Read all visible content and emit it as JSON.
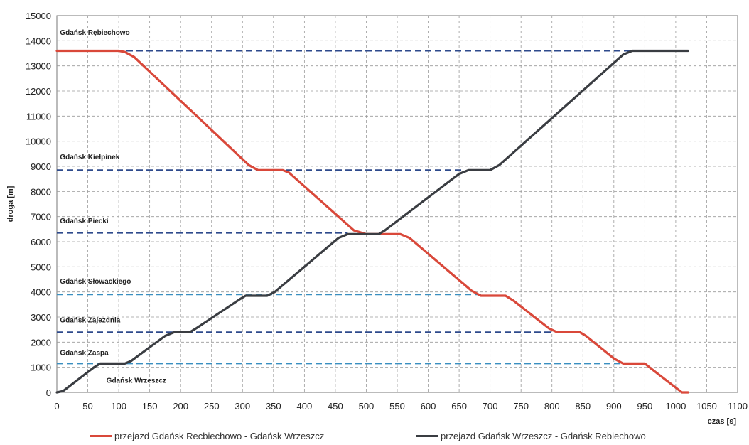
{
  "chart_data": {
    "type": "line",
    "xlabel": "czas [s]",
    "ylabel": "droga [m]",
    "xlim": [
      0,
      1100
    ],
    "ylim": [
      0,
      15000
    ],
    "x_ticks": [
      0,
      50,
      100,
      150,
      200,
      250,
      300,
      350,
      400,
      450,
      500,
      550,
      600,
      650,
      700,
      750,
      800,
      850,
      900,
      950,
      1000,
      1050,
      1100
    ],
    "y_ticks": [
      0,
      1000,
      2000,
      3000,
      4000,
      5000,
      6000,
      7000,
      8000,
      9000,
      10000,
      11000,
      12000,
      13000,
      14000,
      15000
    ],
    "grid": "dashed",
    "legend_position": "bottom",
    "stations": [
      {
        "name": "Gdańsk Rębiechowo",
        "y": 13600,
        "color": "#2e4a8c",
        "x_end": 930,
        "label_y": 14350
      },
      {
        "name": "Gdańsk Kiełpinek",
        "y": 8850,
        "color": "#2e4a8c",
        "x_end": 660,
        "label_y": 9400
      },
      {
        "name": "Gdańsk Piecki",
        "y": 6350,
        "color": "#2e4a8c",
        "x_end": 470,
        "label_y": 6850
      },
      {
        "name": "Gdańsk Słowackiego",
        "y": 3900,
        "color": "#3a8fc0",
        "x_end": 690,
        "label_y": 4450
      },
      {
        "name": "Gdańsk Zajezdnia",
        "y": 2400,
        "color": "#2e4a8c",
        "x_end": 800,
        "label_y": 2900
      },
      {
        "name": "Gdańsk Zaspa",
        "y": 1150,
        "color": "#3a8fc0",
        "x_end": 910,
        "label_y": 1600
      },
      {
        "name": "Gdańsk Wrzeszcz",
        "y": 0,
        "color": null,
        "x_end": null,
        "label_y": 500
      }
    ],
    "series": [
      {
        "name": "przejazd Gdańsk Recbiechowo - Gdańsk Wrzeszcz",
        "color": "#d9483a",
        "x": [
          0,
          100,
          110,
          125,
          310,
          325,
          365,
          375,
          480,
          500,
          555,
          570,
          670,
          685,
          725,
          738,
          795,
          808,
          845,
          855,
          900,
          915,
          950,
          960,
          1010,
          1020
        ],
        "y": [
          13600,
          13600,
          13550,
          13350,
          9050,
          8850,
          8850,
          8750,
          6450,
          6300,
          6300,
          6150,
          4050,
          3850,
          3850,
          3650,
          2550,
          2400,
          2400,
          2250,
          1350,
          1150,
          1150,
          950,
          0,
          0
        ]
      },
      {
        "name": "przejazd Gdańsk Wrzeszcz - Gdańsk Rebiechowo",
        "color": "#3a3d42",
        "x": [
          0,
          10,
          60,
          70,
          110,
          120,
          175,
          190,
          215,
          225,
          295,
          305,
          340,
          352,
          455,
          470,
          520,
          530,
          650,
          665,
          700,
          715,
          915,
          930,
          960,
          1020
        ],
        "y": [
          0,
          50,
          1000,
          1150,
          1150,
          1250,
          2250,
          2400,
          2400,
          2550,
          3700,
          3850,
          3850,
          4000,
          6150,
          6300,
          6300,
          6450,
          8700,
          8850,
          8850,
          9050,
          13450,
          13600,
          13600,
          13600
        ]
      }
    ]
  }
}
